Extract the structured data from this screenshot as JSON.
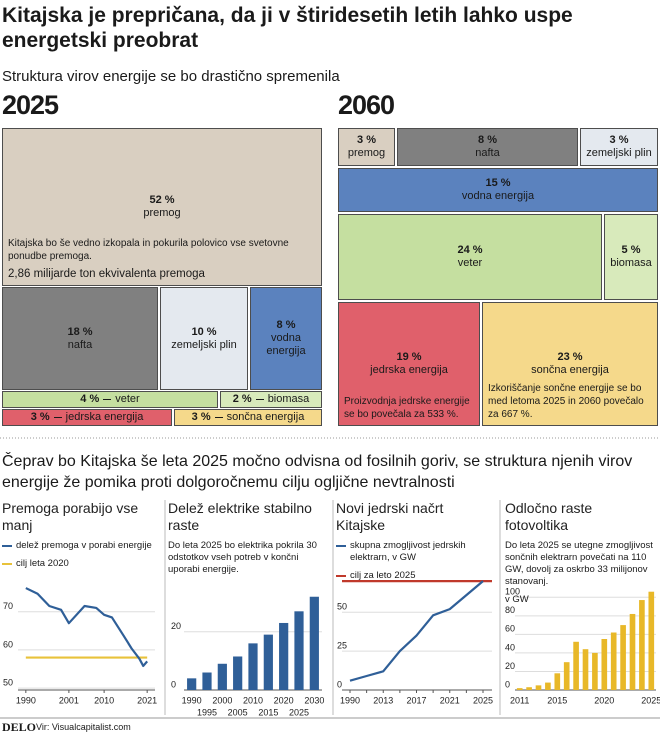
{
  "header": {
    "title": "Kitajska je prepričana, da ji v štiridesetih letih lahko uspe energetski preobrat",
    "subtitle": "Struktura virov energije se bo drastično spremenila"
  },
  "chart_data": [
    {
      "type": "treemap",
      "title": "2025",
      "categories": [
        "premog",
        "nafta",
        "zemeljski plin",
        "vodna energija",
        "veter",
        "biomasa",
        "jedrska energija",
        "sončna energija"
      ],
      "values": [
        52,
        18,
        10,
        8,
        4,
        2,
        3,
        3
      ],
      "value_labels": [
        "52 %",
        "18 %",
        "10 %",
        "8 %",
        "4 %",
        "2 %",
        "3 %",
        "3 %"
      ],
      "colors": [
        "#d9cfc1",
        "#808080",
        "#e4e9ef",
        "#5b82be",
        "#c5dfa0",
        "#d8eabb",
        "#e0606b",
        "#f5d98b"
      ],
      "notes": [
        [
          "Kitajska bo še vedno izkopala in pokurila polovico vse svetovne ponudbe premoga.",
          "2,86 milijarde ton ekvivalenta premoga"
        ],
        [],
        [],
        [],
        [],
        [],
        [],
        []
      ]
    },
    {
      "type": "treemap",
      "title": "2060",
      "categories": [
        "premog",
        "nafta",
        "zemeljski plin",
        "vodna energija",
        "veter",
        "biomasa",
        "jedrska energija",
        "sončna energija"
      ],
      "values": [
        3,
        8,
        3,
        15,
        24,
        5,
        19,
        23
      ],
      "value_labels": [
        "3 %",
        "8 %",
        "3 %",
        "15 %",
        "24 %",
        "5 %",
        "19 %",
        "23 %"
      ],
      "colors": [
        "#d9cfc1",
        "#808080",
        "#e4e9ef",
        "#5b82be",
        "#c5dfa0",
        "#d8eabb",
        "#e0606b",
        "#f5d98b"
      ],
      "notes": [
        [],
        [],
        [],
        [],
        [],
        [],
        [
          "Proizvodnja jedrske energije se bo povečala za 533 %."
        ],
        [
          "Izkoriščanje sončne energije se bo med letoma 2025 in 2060 povečalo za 667 %."
        ]
      ]
    },
    {
      "type": "line",
      "title": "Premoga porabijo vse manj",
      "series": [
        {
          "name": "delež premoga v porabi energije",
          "color": "#2f5f98",
          "x": [
            1990,
            1993,
            1996,
            1999,
            2001,
            2005,
            2008,
            2010,
            2012,
            2015,
            2017,
            2019,
            2020,
            2021
          ],
          "values": [
            76.2,
            74.7,
            71.5,
            70.5,
            67,
            71.5,
            71,
            69.2,
            68.5,
            63.7,
            60.4,
            57.7,
            55.8,
            57
          ]
        },
        {
          "name": "cilj leta 2020",
          "color": "#e8c23a",
          "x": [
            1990,
            2021
          ],
          "values": [
            58,
            58
          ]
        }
      ],
      "xlim": [
        1988,
        2023
      ],
      "xticks": [
        1990,
        2001,
        2010,
        2021
      ],
      "ylim": [
        49.5,
        77
      ],
      "yticks": [
        50,
        60,
        70
      ],
      "grid": true
    },
    {
      "type": "bar",
      "title": "Delež elektrike stabilno raste",
      "notes": [
        "Do leta 2025 bo elektrika pokrila 30 odstotkov vseh potreb v končni uporabi energije."
      ],
      "categories": [
        "1990",
        "1995",
        "2000",
        "2005",
        "2010",
        "2015",
        "2020",
        "2025",
        "2030"
      ],
      "values": [
        4,
        6,
        9,
        11.5,
        16,
        19,
        23,
        27,
        32
      ],
      "color": "#2f5f98",
      "ylim": [
        0,
        35
      ],
      "yticks": [
        0,
        20
      ],
      "grid": true
    },
    {
      "type": "line",
      "title": "Novi jedrski načrt Kitajske",
      "categories": [
        "1990",
        null,
        "2013",
        null,
        "2017",
        null,
        "2021",
        null,
        "2025"
      ],
      "series": [
        {
          "name": "skupna zmogljivost jedrskih elektrarn, v GW",
          "color": "#2f5f98",
          "values": [
            6,
            9,
            12,
            25,
            35,
            48,
            52,
            61,
            70
          ]
        },
        {
          "name": "cilj za leto 2025",
          "color": "#c0392b",
          "values": [
            70,
            70,
            70,
            70,
            70,
            70,
            70,
            70,
            70
          ]
        }
      ],
      "ylim": [
        0,
        72
      ],
      "yticks": [
        0,
        25,
        50
      ],
      "grid": true
    },
    {
      "type": "bar",
      "title": "Odločno raste fotovoltika",
      "notes": [
        "Do leta 2025 se utegne zmogljivost sončnih elektrarn povečati na 110 GW, dovolj za oskrbo 33 milijonov stanovanj.",
        "v GW"
      ],
      "categories": [
        "2011",
        null,
        null,
        null,
        "2015",
        null,
        null,
        null,
        null,
        "2020",
        null,
        null,
        null,
        null,
        "2025"
      ],
      "values": [
        2,
        3,
        5,
        8,
        18,
        30,
        52,
        44,
        40,
        55,
        62,
        70,
        82,
        97,
        106
      ],
      "color": "#e8b828",
      "ylim": [
        0,
        110
      ],
      "yticks": [
        0,
        20,
        40,
        60,
        80,
        100
      ],
      "grid": true
    }
  ],
  "intro": "Čeprav bo Kitajska še leta 2025 močno odvisna od fosilnih goriv, se struktura njenih virov energije že pomika proti dolgoročnemu cilju ogljične nevtralnosti",
  "footer": {
    "logo": "DELO",
    "source": "Vir: Visualcapitalist.com"
  }
}
